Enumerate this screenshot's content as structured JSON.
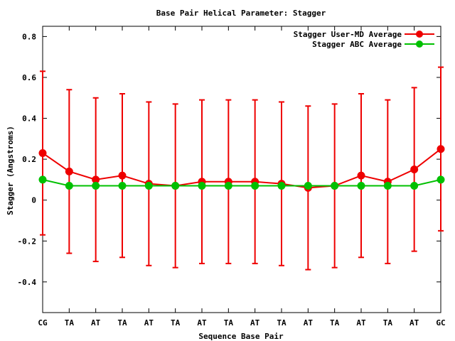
{
  "chart_data": {
    "type": "line",
    "title": "Base Pair Helical Parameter: Stagger",
    "xlabel": "Sequence Base Pair",
    "ylabel": "Stagger (Angstroms)",
    "ylim": [
      -0.55,
      0.85
    ],
    "yticks": [
      -0.4,
      -0.2,
      0,
      0.2,
      0.4,
      0.6,
      0.8
    ],
    "ytick_labels": [
      "-0.4",
      "-0.2",
      "0",
      "0.2",
      "0.4",
      "0.6",
      "0.8"
    ],
    "categories": [
      "CG",
      "TA",
      "AT",
      "TA",
      "AT",
      "TA",
      "AT",
      "TA",
      "AT",
      "TA",
      "AT",
      "TA",
      "AT",
      "TA",
      "AT",
      "GC"
    ],
    "legend_position": "top-right",
    "grid": false,
    "series": [
      {
        "name": "Stagger User-MD Average",
        "color": "#ee0000",
        "values": [
          0.23,
          0.14,
          0.1,
          0.12,
          0.08,
          0.07,
          0.09,
          0.09,
          0.09,
          0.08,
          0.06,
          0.07,
          0.12,
          0.09,
          0.15,
          0.25
        ],
        "error_low": [
          -0.17,
          -0.26,
          -0.3,
          -0.28,
          -0.32,
          -0.33,
          -0.31,
          -0.31,
          -0.31,
          -0.32,
          -0.34,
          -0.33,
          -0.28,
          -0.31,
          -0.25,
          -0.15
        ],
        "error_high": [
          0.63,
          0.54,
          0.5,
          0.52,
          0.48,
          0.47,
          0.49,
          0.49,
          0.49,
          0.48,
          0.46,
          0.47,
          0.52,
          0.49,
          0.55,
          0.65
        ]
      },
      {
        "name": "Stagger ABC Average",
        "color": "#00c000",
        "values": [
          0.1,
          0.07,
          0.07,
          0.07,
          0.07,
          0.07,
          0.07,
          0.07,
          0.07,
          0.07,
          0.07,
          0.07,
          0.07,
          0.07,
          0.07,
          0.1
        ]
      }
    ]
  }
}
